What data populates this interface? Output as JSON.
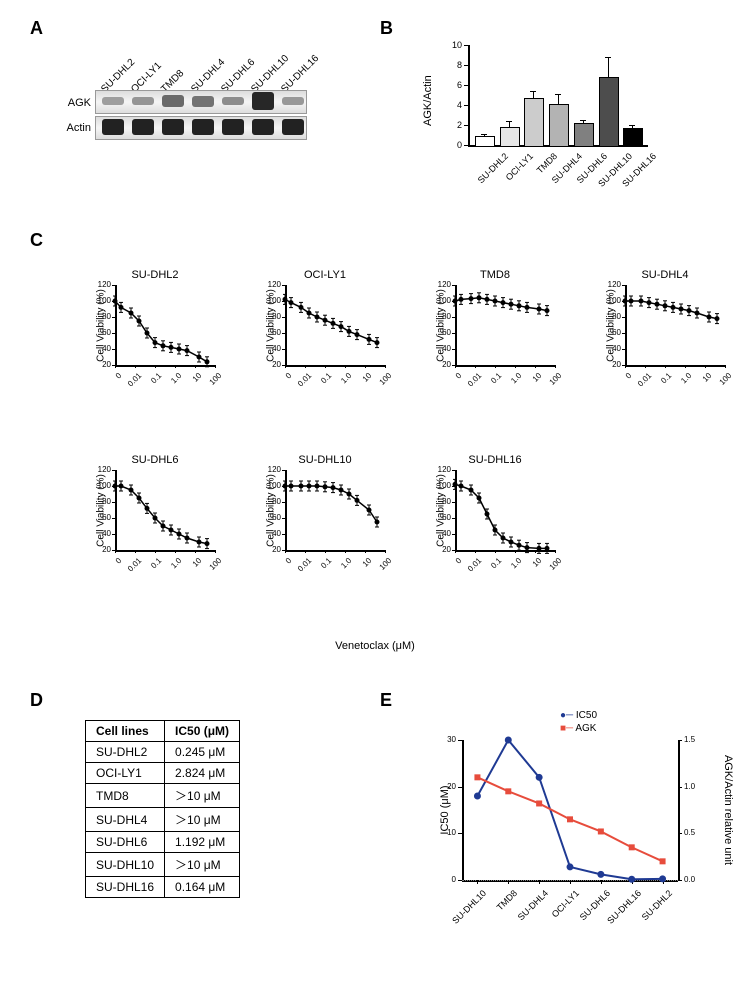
{
  "labels": {
    "A": "A",
    "B": "B",
    "C": "C",
    "D": "D",
    "E": "E"
  },
  "cell_lines": [
    "SU-DHL2",
    "OCI-LY1",
    "TMD8",
    "SU-DHL4",
    "SU-DHL6",
    "SU-DHL10",
    "SU-DHL16"
  ],
  "panelA": {
    "row_labels": [
      "AGK",
      "Actin"
    ],
    "agk_intensity": [
      0.25,
      0.3,
      0.55,
      0.5,
      0.35,
      0.95,
      0.28
    ],
    "actin_intensity": [
      0.85,
      0.85,
      0.85,
      0.85,
      0.85,
      0.85,
      0.85
    ]
  },
  "panelB": {
    "y_title": "AGK/Actin",
    "ylim": [
      0,
      10
    ],
    "yticks": [
      0,
      2,
      4,
      6,
      8,
      10
    ],
    "values": [
      0.9,
      1.8,
      4.7,
      4.1,
      2.2,
      6.8,
      1.7
    ],
    "errors": [
      0.2,
      0.6,
      0.7,
      1.0,
      0.3,
      2.0,
      0.3
    ],
    "bar_colors": [
      "#ffffff",
      "#e6e6e6",
      "#cccccc",
      "#b3b3b3",
      "#808080",
      "#4d4d4d",
      "#000000"
    ]
  },
  "panelC": {
    "y_title": "Cell Viability (%)",
    "x_title": "Venetoclax (μM)",
    "ylim": [
      20,
      120
    ],
    "yticks": [
      20,
      40,
      60,
      80,
      100,
      120
    ],
    "xticks_labels": [
      "0",
      "0.01",
      "0.1",
      "1.0",
      "10",
      "100"
    ],
    "charts": [
      {
        "name": "SU-DHL2",
        "data": [
          [
            0,
            100
          ],
          [
            0.3,
            92
          ],
          [
            0.8,
            85
          ],
          [
            1.2,
            75
          ],
          [
            1.6,
            60
          ],
          [
            2.0,
            48
          ],
          [
            2.4,
            44
          ],
          [
            2.8,
            42
          ],
          [
            3.2,
            40
          ],
          [
            3.6,
            38
          ],
          [
            4.2,
            30
          ],
          [
            4.6,
            24
          ]
        ]
      },
      {
        "name": "OCI-LY1",
        "data": [
          [
            0,
            102
          ],
          [
            0.3,
            98
          ],
          [
            0.8,
            92
          ],
          [
            1.2,
            85
          ],
          [
            1.6,
            80
          ],
          [
            2.0,
            76
          ],
          [
            2.4,
            72
          ],
          [
            2.8,
            68
          ],
          [
            3.2,
            62
          ],
          [
            3.6,
            58
          ],
          [
            4.2,
            52
          ],
          [
            4.6,
            48
          ]
        ]
      },
      {
        "name": "TMD8",
        "data": [
          [
            0,
            100
          ],
          [
            0.3,
            102
          ],
          [
            0.8,
            103
          ],
          [
            1.2,
            104
          ],
          [
            1.6,
            102
          ],
          [
            2.0,
            100
          ],
          [
            2.4,
            98
          ],
          [
            2.8,
            96
          ],
          [
            3.2,
            94
          ],
          [
            3.6,
            92
          ],
          [
            4.2,
            90
          ],
          [
            4.6,
            88
          ]
        ]
      },
      {
        "name": "SU-DHL4",
        "data": [
          [
            0,
            100
          ],
          [
            0.3,
            100
          ],
          [
            0.8,
            100
          ],
          [
            1.2,
            98
          ],
          [
            1.6,
            96
          ],
          [
            2.0,
            94
          ],
          [
            2.4,
            92
          ],
          [
            2.8,
            90
          ],
          [
            3.2,
            88
          ],
          [
            3.6,
            85
          ],
          [
            4.2,
            80
          ],
          [
            4.6,
            78
          ]
        ]
      },
      {
        "name": "SU-DHL6",
        "data": [
          [
            0,
            100
          ],
          [
            0.3,
            100
          ],
          [
            0.8,
            95
          ],
          [
            1.2,
            85
          ],
          [
            1.6,
            72
          ],
          [
            2.0,
            60
          ],
          [
            2.4,
            50
          ],
          [
            2.8,
            45
          ],
          [
            3.2,
            40
          ],
          [
            3.6,
            35
          ],
          [
            4.2,
            30
          ],
          [
            4.6,
            28
          ]
        ]
      },
      {
        "name": "SU-DHL10",
        "data": [
          [
            0,
            100
          ],
          [
            0.3,
            100
          ],
          [
            0.8,
            100
          ],
          [
            1.2,
            100
          ],
          [
            1.6,
            100
          ],
          [
            2.0,
            99
          ],
          [
            2.4,
            98
          ],
          [
            2.8,
            95
          ],
          [
            3.2,
            90
          ],
          [
            3.6,
            82
          ],
          [
            4.2,
            70
          ],
          [
            4.6,
            55
          ]
        ]
      },
      {
        "name": "SU-DHL16",
        "data": [
          [
            0,
            102
          ],
          [
            0.3,
            100
          ],
          [
            0.8,
            95
          ],
          [
            1.2,
            85
          ],
          [
            1.6,
            65
          ],
          [
            2.0,
            45
          ],
          [
            2.4,
            35
          ],
          [
            2.8,
            30
          ],
          [
            3.2,
            26
          ],
          [
            3.6,
            23
          ],
          [
            4.2,
            22
          ],
          [
            4.6,
            22
          ]
        ]
      }
    ]
  },
  "panelD": {
    "headers": [
      "Cell lines",
      "IC50 (μM)"
    ],
    "rows": [
      [
        "SU-DHL2",
        "0.245 μM"
      ],
      [
        "OCI-LY1",
        "2.824 μM"
      ],
      [
        "TMD8",
        "＞10 μM"
      ],
      [
        "SU-DHL4",
        "＞10 μM"
      ],
      [
        "SU-DHL6",
        "1.192 μM"
      ],
      [
        "SU-DHL10",
        "＞10 μM"
      ],
      [
        "SU-DHL16",
        "0.164 μM"
      ]
    ]
  },
  "panelE": {
    "legend": {
      "ic50": "IC50",
      "agk": "AGK"
    },
    "y1_title": "IC50 (μM)",
    "y2_title": "AGK/Actin relative unit",
    "y1_lim": [
      0,
      30
    ],
    "y1_ticks": [
      0,
      10,
      20,
      30
    ],
    "y2_lim": [
      0.0,
      1.5
    ],
    "y2_ticks": [
      0.0,
      0.5,
      1.0,
      1.5
    ],
    "x_labels": [
      "SU-DHL10",
      "TMD8",
      "SU-DHL4",
      "OCI-LY1",
      "SU-DHL6",
      "SU-DHL16",
      "SU-DHL2"
    ],
    "ic50_vals": [
      18,
      30,
      22,
      2.8,
      1.2,
      0.16,
      0.25
    ],
    "agk_vals": [
      1.1,
      0.95,
      0.82,
      0.65,
      0.52,
      0.35,
      0.2
    ],
    "ic50_color": "#1f3a93",
    "agk_color": "#e74c3c"
  }
}
